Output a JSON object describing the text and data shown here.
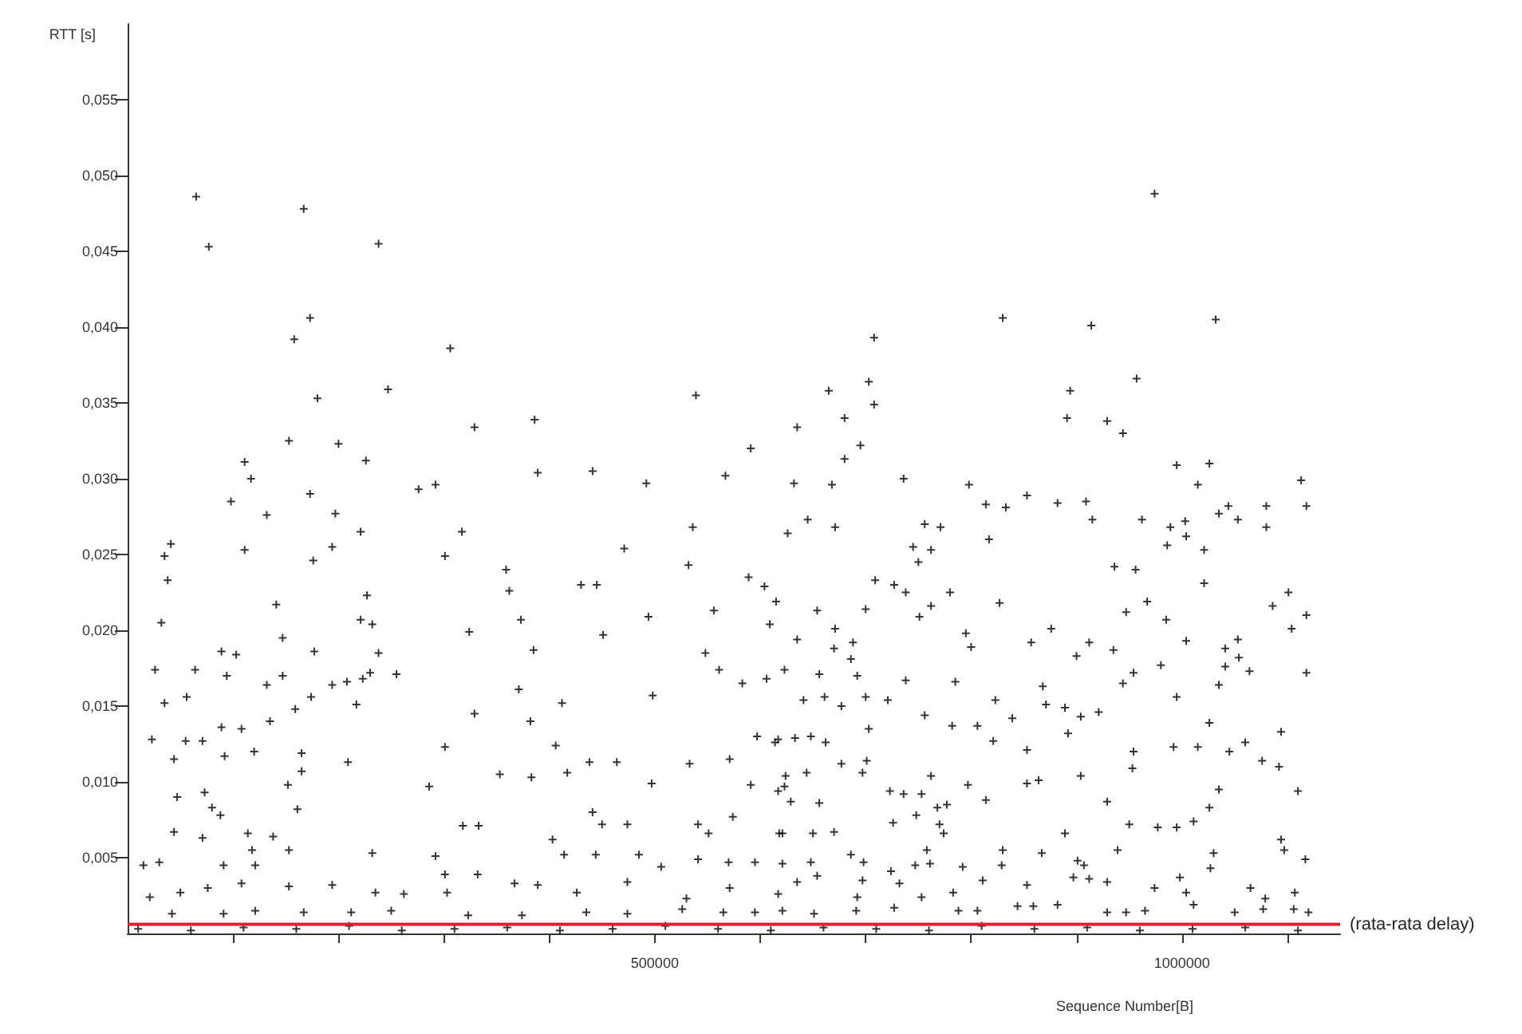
{
  "chart_data": {
    "type": "scatter",
    "xlabel": "Sequence Number[B]",
    "ylabel": "RTT [s]",
    "marker": "cross",
    "xlim": [
      0,
      1150000
    ],
    "ylim": [
      0,
      0.06
    ],
    "xticks": [
      {
        "value": 100000,
        "label": null
      },
      {
        "value": 200000,
        "label": null
      },
      {
        "value": 300000,
        "label": null
      },
      {
        "value": 400000,
        "label": null
      },
      500000,
      {
        "value": 600000,
        "label": null
      },
      {
        "value": 700000,
        "label": null
      },
      {
        "value": 800000,
        "label": null
      },
      {
        "value": 900000,
        "label": null
      },
      1000000,
      {
        "value": 1100000,
        "label": null
      }
    ],
    "yticks": [
      {
        "value": 0.005,
        "label": "0,005"
      },
      {
        "value": 0.01,
        "label": "0,010"
      },
      {
        "value": 0.015,
        "label": "0,015"
      },
      {
        "value": 0.02,
        "label": "0,020"
      },
      {
        "value": 0.025,
        "label": "0,025"
      },
      {
        "value": 0.03,
        "label": "0,030"
      },
      {
        "value": 0.035,
        "label": "0,035"
      },
      {
        "value": 0.04,
        "label": "0,040"
      },
      {
        "value": 0.045,
        "label": "0,045"
      },
      {
        "value": 0.05,
        "label": "0,050"
      },
      {
        "value": 0.055,
        "label": "0,055"
      }
    ],
    "ref_lines": [
      {
        "axis": "y",
        "value": 0.0006,
        "label": "(rata-rata delay)",
        "color": "#e02030"
      }
    ],
    "series": [
      {
        "color": "#000000",
        "x": [
          65000,
          167000,
          77000,
          238000,
          173000,
          158000,
          306000,
          247000,
          180000,
          539000,
          329000,
          386000,
          153000,
          200000,
          111000,
          117000,
          226000,
          98000,
          173000,
          132000,
          197000,
          221000,
          276000,
          292000,
          389000,
          441000,
          492000,
          591000,
          567000,
          41000,
          35000,
          38000,
          111000,
          194000,
          176000,
          301000,
          317000,
          32000,
          141000,
          147000,
          221000,
          232000,
          227000,
          324000,
          359000,
          362000,
          373000,
          430000,
          445000,
          451000,
          471000,
          494000,
          532000,
          536000,
          556000,
          589000,
          604000,
          89000,
          103000,
          26000,
          64000,
          94000,
          132000,
          147000,
          177000,
          194000,
          208000,
          223000,
          230000,
          238000,
          255000,
          174000,
          217000,
          159000,
          371000,
          412000,
          385000,
          498000,
          548000,
          561000,
          583000,
          606000,
          35000,
          56000,
          23000,
          55000,
          71000,
          89000,
          108000,
          120000,
          135000,
          92000,
          44000,
          165000,
          165000,
          209000,
          301000,
          329000,
          382000,
          406000,
          438000,
          464000,
          533000,
          571000,
          597000,
          617000,
          47000,
          73000,
          152000,
          161000,
          286000,
          353000,
          383000,
          417000,
          497000,
          591000,
          623000,
          80000,
          88000,
          44000,
          71000,
          114000,
          138000,
          153000,
          318000,
          333000,
          403000,
          441000,
          450000,
          474000,
          541000,
          551000,
          574000,
          618000,
          15000,
          30000,
          91000,
          121000,
          118000,
          232000,
          292000,
          301000,
          332000,
          414000,
          444000,
          485000,
          506000,
          541000,
          570000,
          595000,
          21000,
          50000,
          76000,
          108000,
          153000,
          194000,
          235000,
          262000,
          303000,
          367000,
          389000,
          426000,
          474000,
          530000,
          571000,
          617000,
          42000,
          91000,
          121000,
          167000,
          212000,
          250000,
          323000,
          374000,
          435000,
          474000,
          526000,
          565000,
          595000,
          974000,
          830000,
          914000,
          1032000,
          708000,
          703000,
          708000,
          665000,
          680000,
          635000,
          695000,
          680000,
          894000,
          891000,
          929000,
          944000,
          957000,
          995000,
          1026000,
          1015000,
          1113000,
          1118000,
          632000,
          668000,
          736000,
          798000,
          814000,
          833000,
          853000,
          882000,
          909000,
          915000,
          962000,
          1003000,
          989000,
          1044000,
          1053000,
          1080000,
          1080000,
          1035000,
          626000,
          645000,
          671000,
          756000,
          771000,
          745000,
          762000,
          750000,
          817000,
          986000,
          1004000,
          1021000,
          936000,
          956000,
          1021000,
          615000,
          609000,
          709000,
          727000,
          738000,
          780000,
          827000,
          751000,
          762000,
          947000,
          967000,
          985000,
          1086000,
          1101000,
          1104000,
          1118000,
          654000,
          700000,
          671000,
          635000,
          670000,
          688000,
          686000,
          656000,
          692000,
          738000,
          785000,
          795000,
          800000,
          857000,
          876000,
          900000,
          912000,
          935000,
          954000,
          944000,
          980000,
          1004000,
          1041000,
          1053000,
          1054000,
          1041000,
          1064000,
          1035000,
          1118000,
          623000,
          641000,
          661000,
          677000,
          700000,
          721000,
          756000,
          782000,
          806000,
          823000,
          868000,
          871000,
          889000,
          904000,
          921000,
          839000,
          821000,
          853000,
          892000,
          995000,
          1026000,
          1094000,
          614000,
          633000,
          648000,
          662000,
          624000,
          644000,
          677000,
          701000,
          697000,
          703000,
          762000,
          797000,
          814000,
          853000,
          864000,
          904000,
          929000,
          954000,
          953000,
          992000,
          1015000,
          1045000,
          1060000,
          1076000,
          1092000,
          1035000,
          1026000,
          1110000,
          617000,
          629000,
          656000,
          723000,
          736000,
          753000,
          768000,
          777000,
          748000,
          770000,
          726000,
          774000,
          889000,
          950000,
          977000,
          995000,
          1011000,
          1094000,
          1097000,
          1117000,
          621000,
          650000,
          670000,
          758000,
          830000,
          867000,
          939000,
          1030000,
          907000,
          1027000,
          621000,
          648000,
          686000,
          698000,
          724000,
          747000,
          761000,
          792000,
          811000,
          829000,
          853000,
          897000,
          912000,
          929000,
          974000,
          998000,
          1004000,
          1065000,
          1079000,
          1107000,
          635000,
          654000,
          697000,
          732000,
          753000,
          783000,
          692000,
          901000,
          621000,
          651000,
          691000,
          727000,
          788000,
          806000,
          844000,
          859000,
          882000,
          929000,
          947000,
          965000,
          1011000,
          1050000,
          1077000,
          1106000,
          1120000,
          10000,
          60000,
          110000,
          160000,
          210000,
          260000,
          310000,
          360000,
          410000,
          460000,
          510000,
          560000,
          610000,
          660000,
          710000,
          760000,
          810000,
          860000,
          910000,
          960000,
          1010000,
          1060000,
          1110000
        ],
        "values": [
          0.0486,
          0.0478,
          0.0453,
          0.0455,
          0.0406,
          0.0392,
          0.0386,
          0.0359,
          0.0353,
          0.0355,
          0.0334,
          0.0339,
          0.0325,
          0.0323,
          0.0311,
          0.03,
          0.0312,
          0.0285,
          0.029,
          0.0276,
          0.0277,
          0.0265,
          0.0293,
          0.0296,
          0.0304,
          0.0305,
          0.0297,
          0.032,
          0.0302,
          0.0257,
          0.0249,
          0.0233,
          0.0253,
          0.0255,
          0.0246,
          0.0249,
          0.0265,
          0.0205,
          0.0217,
          0.0195,
          0.0207,
          0.0204,
          0.0223,
          0.0199,
          0.024,
          0.0226,
          0.0207,
          0.023,
          0.023,
          0.0197,
          0.0254,
          0.0209,
          0.0243,
          0.0268,
          0.0213,
          0.0235,
          0.0229,
          0.0186,
          0.0184,
          0.0174,
          0.0174,
          0.017,
          0.0164,
          0.017,
          0.0186,
          0.0164,
          0.0166,
          0.0168,
          0.0172,
          0.0185,
          0.0171,
          0.0156,
          0.0151,
          0.0148,
          0.0161,
          0.0152,
          0.0187,
          0.0157,
          0.0185,
          0.0174,
          0.0165,
          0.0168,
          0.0152,
          0.0156,
          0.0128,
          0.0127,
          0.0127,
          0.0136,
          0.0135,
          0.012,
          0.014,
          0.0117,
          0.0115,
          0.0119,
          0.0107,
          0.0113,
          0.0123,
          0.0145,
          0.014,
          0.0124,
          0.0113,
          0.0113,
          0.0112,
          0.0115,
          0.013,
          0.0128,
          0.009,
          0.0093,
          0.0098,
          0.0082,
          0.0097,
          0.0105,
          0.0103,
          0.0106,
          0.0099,
          0.0098,
          0.0097,
          0.0083,
          0.0078,
          0.0067,
          0.0063,
          0.0066,
          0.0064,
          0.0055,
          0.0071,
          0.0071,
          0.0062,
          0.008,
          0.0072,
          0.0072,
          0.0072,
          0.0066,
          0.0077,
          0.0066,
          0.0045,
          0.0047,
          0.0045,
          0.0045,
          0.0055,
          0.0053,
          0.0051,
          0.0039,
          0.0039,
          0.0052,
          0.0052,
          0.0052,
          0.0044,
          0.0049,
          0.0047,
          0.0047,
          0.0024,
          0.0027,
          0.003,
          0.0033,
          0.0031,
          0.0032,
          0.0027,
          0.0026,
          0.0027,
          0.0033,
          0.0032,
          0.0027,
          0.0034,
          0.0023,
          0.003,
          0.0026,
          0.0013,
          0.0013,
          0.0015,
          0.0014,
          0.0014,
          0.0015,
          0.0012,
          0.0012,
          0.0014,
          0.0013,
          0.0016,
          0.0014,
          0.0014,
          0.0488,
          0.0406,
          0.0401,
          0.0405,
          0.0393,
          0.0364,
          0.0349,
          0.0358,
          0.034,
          0.0334,
          0.0322,
          0.0313,
          0.0358,
          0.034,
          0.0338,
          0.033,
          0.0366,
          0.0309,
          0.031,
          0.0296,
          0.0299,
          0.0282,
          0.0297,
          0.0296,
          0.03,
          0.0296,
          0.0283,
          0.0281,
          0.0289,
          0.0284,
          0.0285,
          0.0273,
          0.0273,
          0.0272,
          0.0268,
          0.0282,
          0.0273,
          0.0282,
          0.0268,
          0.0277,
          0.0264,
          0.0273,
          0.0268,
          0.027,
          0.0268,
          0.0255,
          0.0253,
          0.0245,
          0.026,
          0.0256,
          0.0262,
          0.0253,
          0.0242,
          0.024,
          0.0231,
          0.0219,
          0.0204,
          0.0233,
          0.023,
          0.0225,
          0.0225,
          0.0218,
          0.0209,
          0.0216,
          0.0212,
          0.0219,
          0.0207,
          0.0216,
          0.0225,
          0.0201,
          0.021,
          0.0213,
          0.0214,
          0.0201,
          0.0194,
          0.0188,
          0.0192,
          0.0181,
          0.0171,
          0.017,
          0.0167,
          0.0166,
          0.0198,
          0.0189,
          0.0192,
          0.0201,
          0.0183,
          0.0192,
          0.0187,
          0.0172,
          0.0165,
          0.0177,
          0.0193,
          0.0188,
          0.0194,
          0.0182,
          0.0176,
          0.0173,
          0.0164,
          0.0172,
          0.0174,
          0.0154,
          0.0156,
          0.015,
          0.0156,
          0.0154,
          0.0144,
          0.0137,
          0.0137,
          0.0154,
          0.0163,
          0.0151,
          0.0149,
          0.0143,
          0.0146,
          0.0142,
          0.0127,
          0.0121,
          0.0132,
          0.0156,
          0.0139,
          0.0133,
          0.0126,
          0.0129,
          0.013,
          0.0126,
          0.0104,
          0.0106,
          0.0112,
          0.0114,
          0.0106,
          0.0135,
          0.0104,
          0.0098,
          0.0088,
          0.0099,
          0.0101,
          0.0104,
          0.0087,
          0.012,
          0.0109,
          0.0123,
          0.0123,
          0.012,
          0.0126,
          0.0114,
          0.011,
          0.0095,
          0.0083,
          0.0094,
          0.0094,
          0.0087,
          0.0086,
          0.0094,
          0.0092,
          0.0092,
          0.0083,
          0.0085,
          0.0078,
          0.0072,
          0.0073,
          0.0066,
          0.0066,
          0.0072,
          0.007,
          0.007,
          0.0074,
          0.0062,
          0.0055,
          0.0049,
          0.0066,
          0.0066,
          0.0067,
          0.0055,
          0.0055,
          0.0053,
          0.0055,
          0.0053,
          0.0045,
          0.0043,
          0.0046,
          0.0047,
          0.0052,
          0.0047,
          0.0041,
          0.0045,
          0.0046,
          0.0044,
          0.0035,
          0.0045,
          0.0032,
          0.0037,
          0.0036,
          0.0034,
          0.003,
          0.0037,
          0.0027,
          0.003,
          0.0023,
          0.0027,
          0.0034,
          0.0038,
          0.0035,
          0.0033,
          0.0024,
          0.0027,
          0.0024,
          0.0048,
          0.0015,
          0.0013,
          0.0015,
          0.0017,
          0.0015,
          0.0015,
          0.0018,
          0.0018,
          0.0019,
          0.0014,
          0.0014,
          0.0015,
          0.0019,
          0.0014,
          0.0016,
          0.0016,
          0.0014,
          0.0003,
          0.0002,
          0.0004,
          0.0003,
          0.0005,
          0.0002,
          0.0003,
          0.0004,
          0.0002,
          0.0003,
          0.0005,
          0.0003,
          0.0002,
          0.0004,
          0.0003,
          0.0002,
          0.0005,
          0.0003,
          0.0004,
          0.0002,
          0.0003,
          0.0004,
          0.0002
        ]
      }
    ]
  }
}
